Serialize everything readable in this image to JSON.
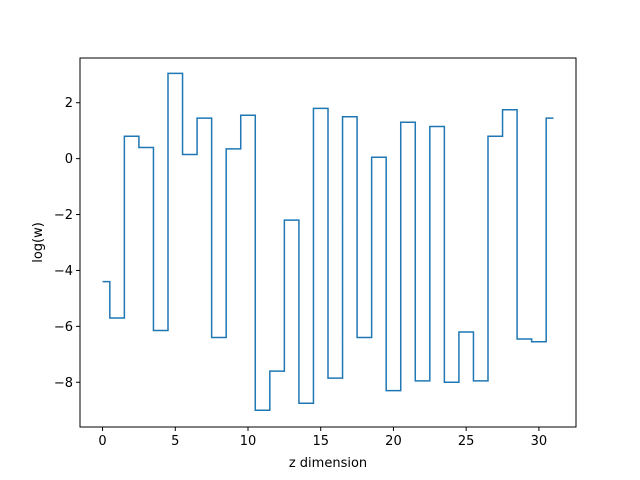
{
  "chart_data": {
    "type": "line",
    "drawstyle": "steps-mid",
    "title": "",
    "xlabel": "z dimension",
    "ylabel": "log(w)",
    "xlim": [
      -1.55,
      32.55
    ],
    "ylim": [
      -9.6,
      3.6
    ],
    "grid": false,
    "xticks": [
      0,
      5,
      10,
      15,
      20,
      25,
      30
    ],
    "xtick_labels": [
      "0",
      "5",
      "10",
      "15",
      "20",
      "25",
      "30"
    ],
    "yticks": [
      -8,
      -6,
      -4,
      -2,
      0,
      2
    ],
    "ytick_labels": [
      "−8",
      "−6",
      "−4",
      "−2",
      "0",
      "2"
    ],
    "series": [
      {
        "color": "#1f77b4",
        "x": [
          0,
          1,
          2,
          3,
          4,
          5,
          6,
          7,
          8,
          9,
          10,
          11,
          12,
          13,
          14,
          15,
          16,
          17,
          18,
          19,
          20,
          21,
          22,
          23,
          24,
          25,
          26,
          27,
          28,
          29,
          30,
          31
        ],
        "values": [
          -4.4,
          -5.7,
          0.8,
          0.4,
          -6.15,
          3.05,
          0.15,
          1.45,
          -6.4,
          0.35,
          1.55,
          -9.0,
          -7.6,
          -2.2,
          -8.75,
          1.8,
          -7.85,
          1.5,
          -6.4,
          0.05,
          -8.3,
          1.3,
          -7.95,
          1.15,
          -8.0,
          -6.2,
          -7.95,
          0.8,
          1.75,
          -6.45,
          -6.55,
          1.45
        ]
      }
    ]
  }
}
